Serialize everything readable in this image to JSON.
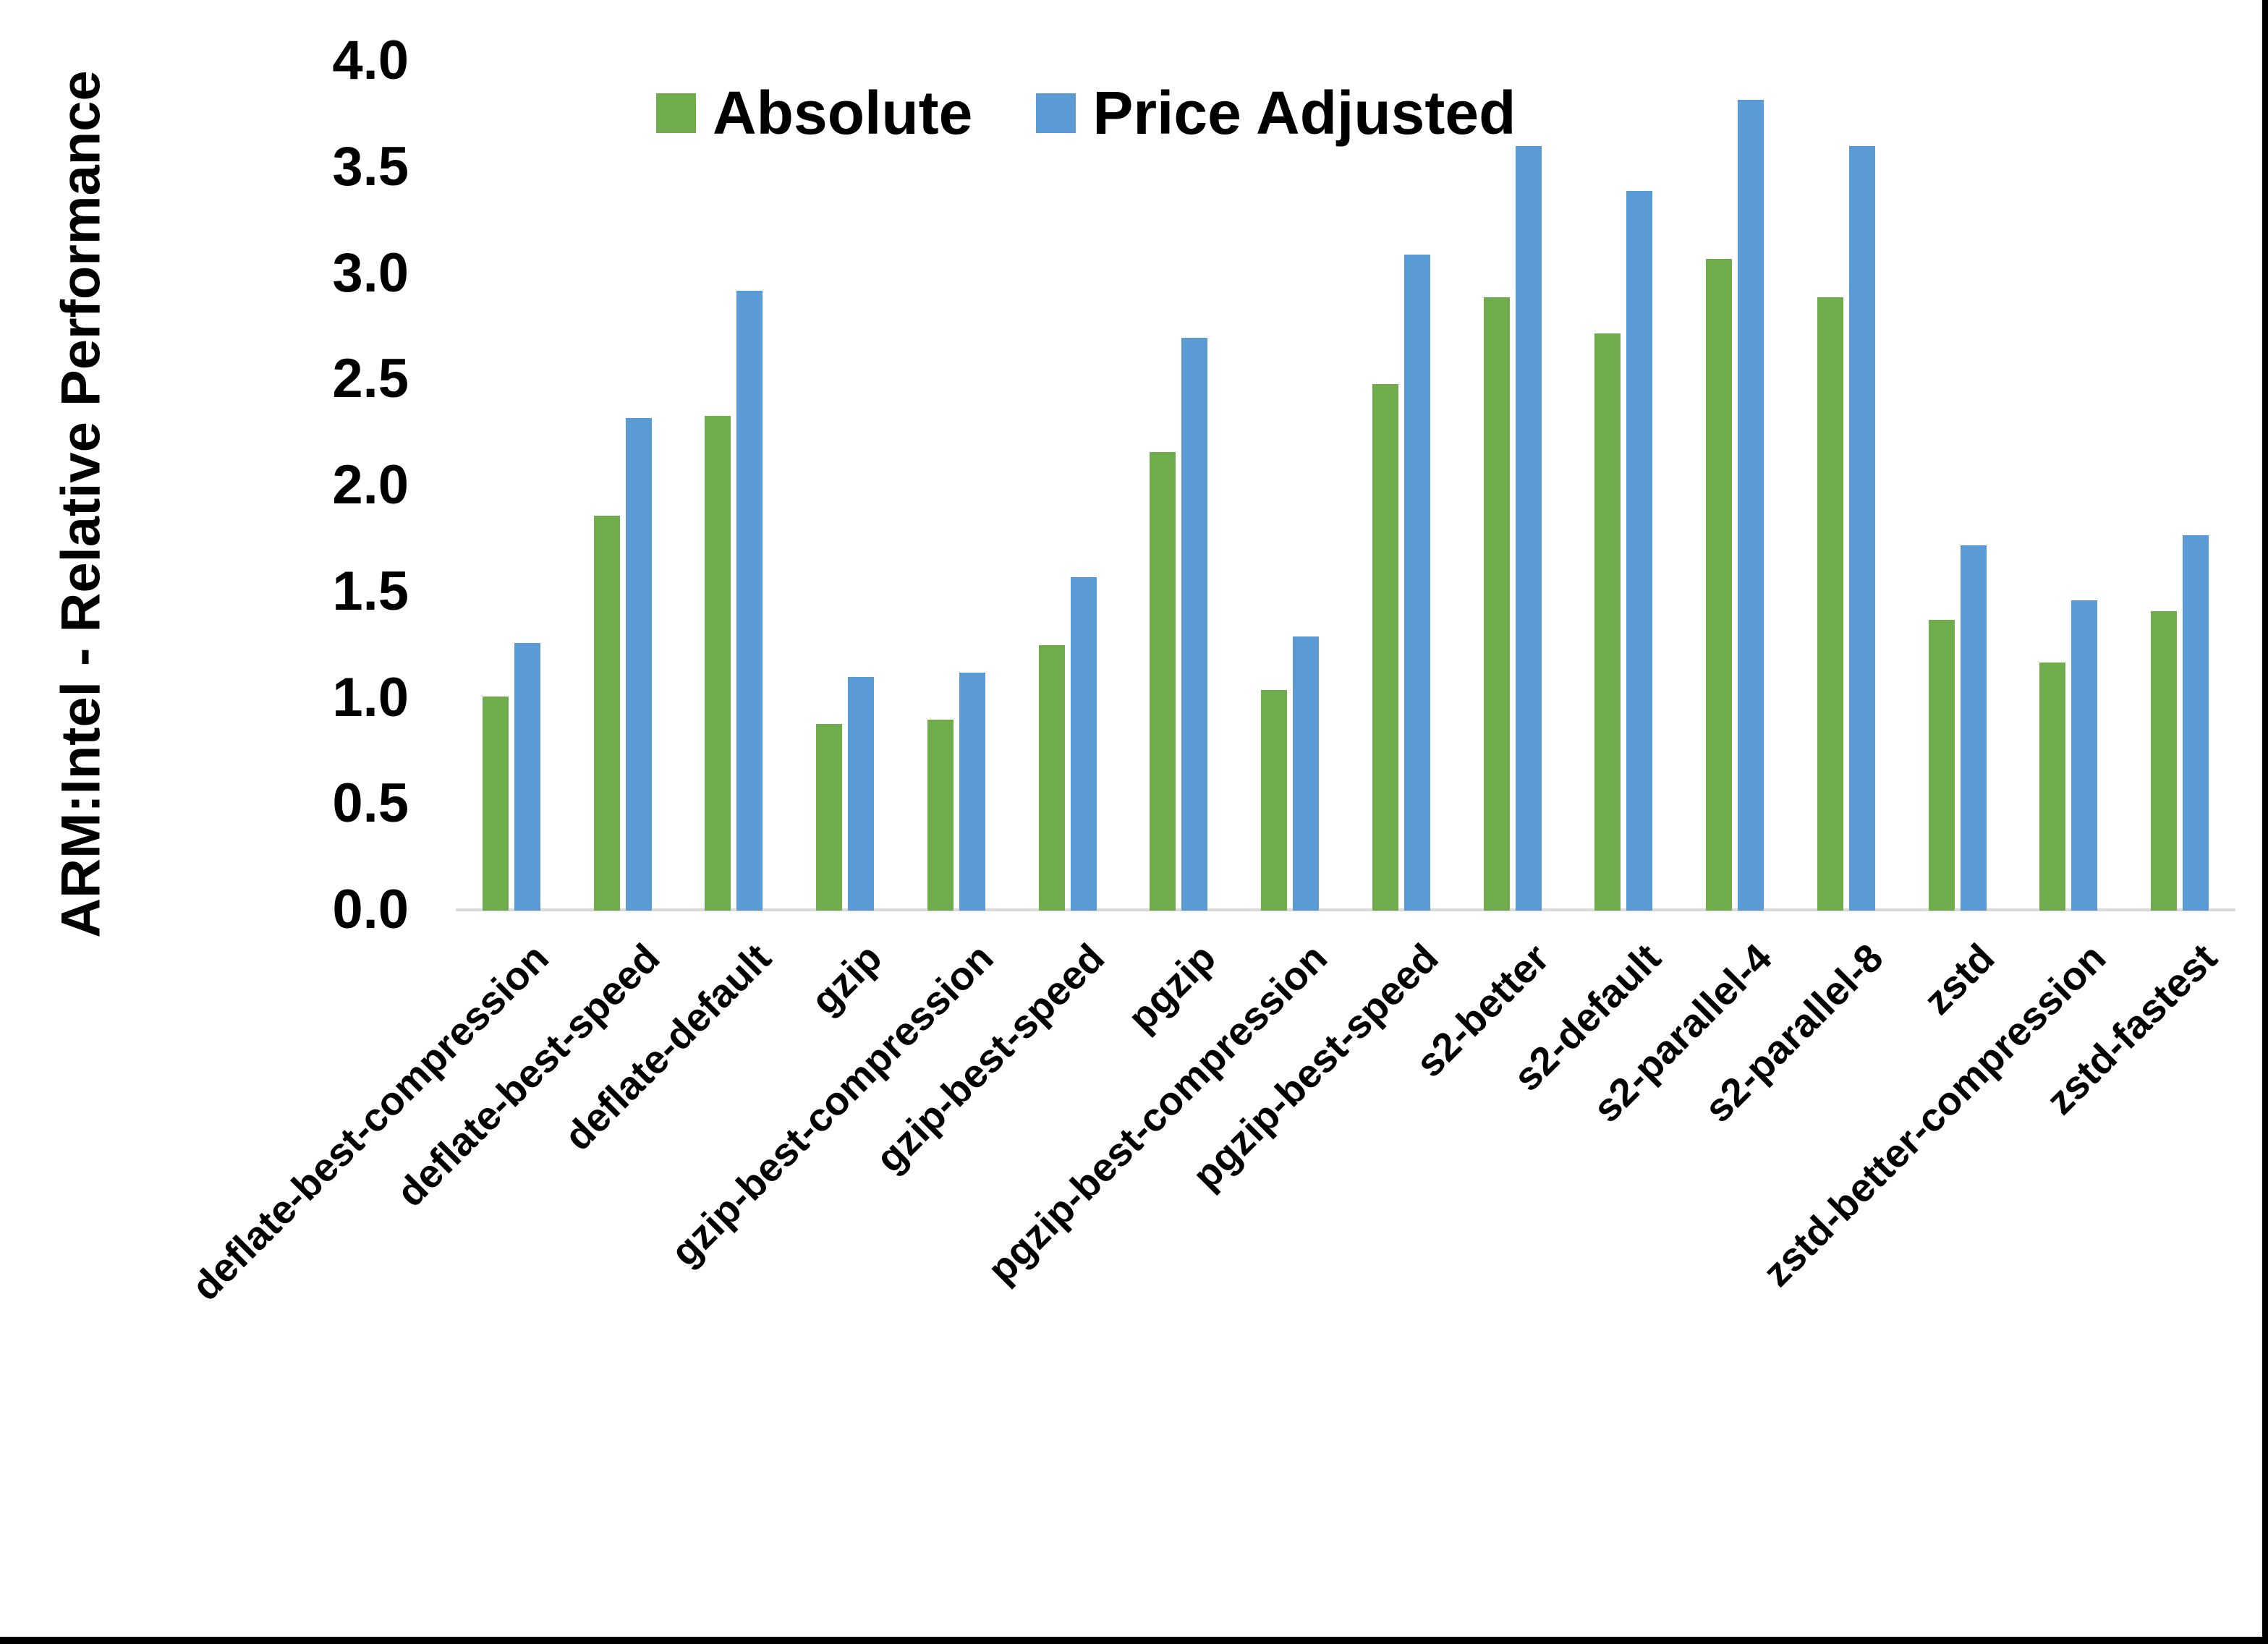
{
  "chart_data": {
    "type": "bar",
    "title": "",
    "ylabel": "ARM:Intel - Relative Performance",
    "xlabel": "",
    "ylim": [
      0.0,
      4.0
    ],
    "ytick_step": 0.5,
    "ytick_labels": [
      "0.0",
      "0.5",
      "1.0",
      "1.5",
      "2.0",
      "2.5",
      "3.0",
      "3.5",
      "4.0"
    ],
    "grid": false,
    "legend_position": "top-center",
    "categories": [
      "deflate-best-compression",
      "deflate-best-speed",
      "deflate-default",
      "gzip",
      "gzip-best-compression",
      "gzip-best-speed",
      "pgzip",
      "pgzip-best-compression",
      "pgzip-best-speed",
      "s2-better",
      "s2-default",
      "s2-parallel-4",
      "s2-parallel-8",
      "zstd",
      "zstd-better-compression",
      "zstd-fastest"
    ],
    "series": [
      {
        "name": "Absolute",
        "color": "#6FAC4C",
        "values": [
          1.01,
          1.86,
          2.33,
          0.88,
          0.9,
          1.25,
          2.16,
          1.04,
          2.48,
          2.89,
          2.72,
          3.07,
          2.89,
          1.37,
          1.17,
          1.41
        ]
      },
      {
        "name": "Price Adjusted",
        "color": "#5B9BD5",
        "values": [
          1.26,
          2.32,
          2.92,
          1.1,
          1.12,
          1.57,
          2.7,
          1.29,
          3.09,
          3.6,
          3.39,
          3.82,
          3.6,
          1.72,
          1.46,
          1.77
        ]
      }
    ],
    "axis_line_color": "#D9D9D9",
    "text_color": "#000000",
    "background_color": "#FFFFFF",
    "border_color": "#000000"
  }
}
